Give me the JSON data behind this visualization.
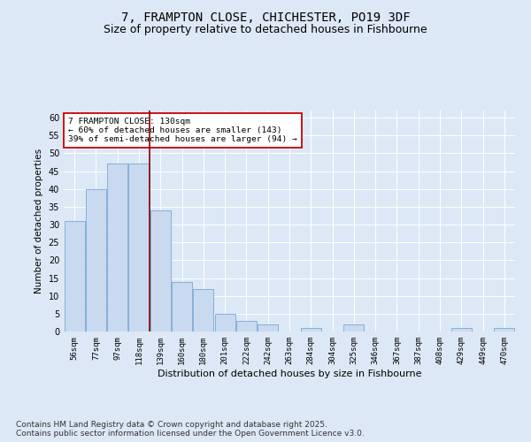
{
  "title": "7, FRAMPTON CLOSE, CHICHESTER, PO19 3DF",
  "subtitle": "Size of property relative to detached houses in Fishbourne",
  "xlabel": "Distribution of detached houses by size in Fishbourne",
  "ylabel": "Number of detached properties",
  "categories": [
    "56sqm",
    "77sqm",
    "97sqm",
    "118sqm",
    "139sqm",
    "160sqm",
    "180sqm",
    "201sqm",
    "222sqm",
    "242sqm",
    "263sqm",
    "284sqm",
    "304sqm",
    "325sqm",
    "346sqm",
    "367sqm",
    "387sqm",
    "408sqm",
    "429sqm",
    "449sqm",
    "470sqm"
  ],
  "values": [
    31,
    40,
    47,
    47,
    34,
    14,
    12,
    5,
    3,
    2,
    0,
    1,
    0,
    2,
    0,
    0,
    0,
    0,
    1,
    0,
    1
  ],
  "bar_color": "#c9daf0",
  "bar_edge_color": "#7aa7d4",
  "vline_x": 3.5,
  "vline_color": "#8b0000",
  "annotation_text": "7 FRAMPTON CLOSE: 130sqm\n← 60% of detached houses are smaller (143)\n39% of semi-detached houses are larger (94) →",
  "annotation_box_color": "#ffffff",
  "annotation_box_edge": "#cc0000",
  "ylim": [
    0,
    62
  ],
  "yticks": [
    0,
    5,
    10,
    15,
    20,
    25,
    30,
    35,
    40,
    45,
    50,
    55,
    60
  ],
  "background_color": "#dce8f5",
  "plot_bg_color": "#dce8f5",
  "title_fontsize": 10,
  "subtitle_fontsize": 9,
  "footer_text": "Contains HM Land Registry data © Crown copyright and database right 2025.\nContains public sector information licensed under the Open Government Licence v3.0.",
  "footer_fontsize": 6.5
}
